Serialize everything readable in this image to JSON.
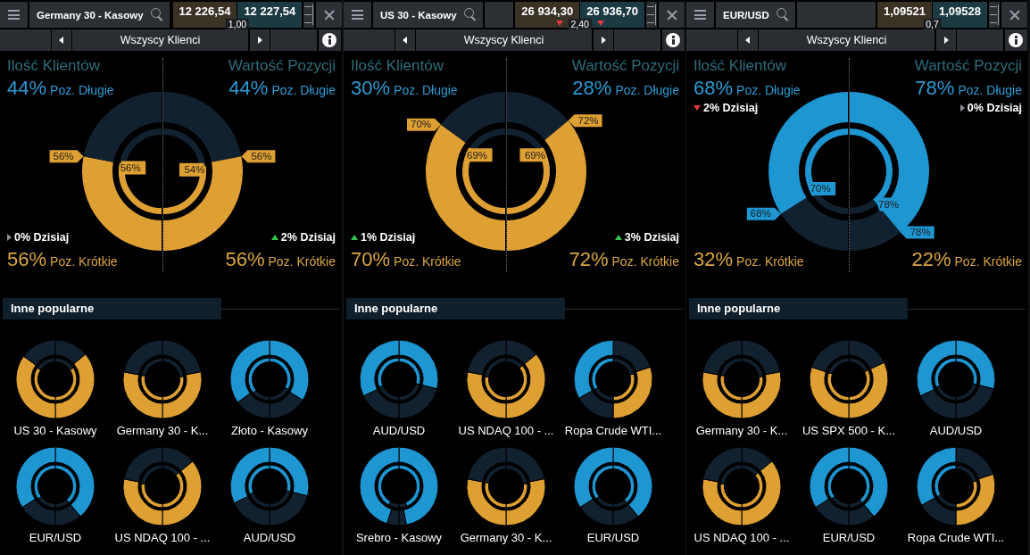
{
  "chart_data": [
    {
      "type": "other",
      "title": "Germany 30 - Kasowy",
      "annotations": [
        "12 226,54",
        "12 227,54",
        "1,00",
        "Wszyscy Klienci",
        "Inne popularne"
      ]
    },
    {
      "type": "donut",
      "title": "Ilość Klientów",
      "categories": [
        "Poz. Długie",
        "Poz. Krótkie"
      ],
      "colors": [
        "#122130",
        "#dfa033"
      ],
      "series": [
        {
          "values": [
            44,
            56
          ],
          "value_labels": [
            "44%",
            "56%"
          ]
        },
        {
          "values": [
            44,
            56
          ],
          "value_labels": [
            null,
            "56%"
          ]
        }
      ],
      "annotations": [
        "0% Dzisiaj"
      ]
    },
    {
      "type": "donut",
      "title": "Wartość Pozycji",
      "categories": [
        "Poz. Długie",
        "Poz. Krótkie"
      ],
      "colors": [
        "#122130",
        "#dfa033"
      ],
      "series": [
        {
          "values": [
            44,
            56
          ],
          "value_labels": [
            "44%",
            "56%"
          ]
        },
        {
          "values": [
            46,
            54
          ],
          "value_labels": [
            null,
            "54%"
          ]
        }
      ],
      "annotations": [
        "2% Dzisiaj"
      ]
    },
    {
      "type": "donut",
      "title": "US 30 - Kasowy",
      "categories": [
        null,
        null,
        null,
        null
      ],
      "colors": [
        "#122130",
        "#dfa033",
        "#dfa033",
        "#122130"
      ],
      "series": [
        {
          "values": [
            14,
            36,
            35,
            15
          ]
        },
        {
          "values": [
            16,
            34,
            34,
            16
          ]
        }
      ]
    },
    {
      "type": "donut",
      "title": "Germany 30 - K...",
      "categories": [
        null,
        null,
        null,
        null
      ],
      "colors": [
        "#122130",
        "#dfa033",
        "#dfa033",
        "#122130"
      ],
      "series": [
        {
          "values": [
            22,
            28,
            28,
            22
          ]
        },
        {
          "values": [
            23,
            27,
            28,
            22
          ]
        }
      ]
    },
    {
      "type": "donut",
      "title": "Złoto - Kasowy",
      "categories": [
        null,
        null,
        null,
        null
      ],
      "colors": [
        "#1e96d2",
        "#122130",
        "#122130",
        "#1e96d2"
      ],
      "series": [
        {
          "values": [
            34,
            16,
            15,
            35
          ]
        },
        {
          "values": [
            33,
            17,
            14,
            36
          ]
        }
      ]
    },
    {
      "type": "donut",
      "title": "EUR/USD",
      "categories": [
        null,
        null,
        null,
        null
      ],
      "colors": [
        "#1e96d2",
        "#122130",
        "#122130",
        "#1e96d2"
      ],
      "series": [
        {
          "values": [
            39,
            11,
            16,
            34
          ]
        },
        {
          "values": [
            39,
            11,
            15,
            35
          ]
        }
      ]
    },
    {
      "type": "donut",
      "title": "US NDAQ 100 - ...",
      "categories": [
        null,
        null,
        null,
        null
      ],
      "colors": [
        "#122130",
        "#dfa033",
        "#dfa033",
        "#122130"
      ],
      "series": [
        {
          "values": [
            14,
            36,
            28,
            22
          ]
        },
        {
          "values": [
            14,
            36,
            27,
            23
          ]
        }
      ]
    },
    {
      "type": "donut",
      "title": "AUD/USD",
      "categories": [
        null,
        null,
        null,
        null
      ],
      "colors": [
        "#1e96d2",
        "#122130",
        "#122130",
        "#1e96d2"
      ],
      "series": [
        {
          "values": [
            29,
            21,
            18,
            32
          ]
        },
        {
          "values": [
            29,
            21,
            19,
            31
          ]
        }
      ]
    },
    {
      "type": "other",
      "title": "US 30 - Kasowy",
      "annotations": [
        "26 934,30",
        "26 936,70",
        "2,40",
        "Wszyscy Klienci",
        "Inne popularne"
      ]
    },
    {
      "type": "donut",
      "title": "Ilość Klientów",
      "categories": [
        "Poz. Długie",
        "Poz. Krótkie"
      ],
      "colors": [
        "#122130",
        "#dfa033"
      ],
      "series": [
        {
          "values": [
            30,
            70
          ],
          "value_labels": [
            "30%",
            "70%"
          ]
        },
        {
          "values": [
            31,
            69
          ],
          "value_labels": [
            null,
            "69%"
          ]
        }
      ],
      "annotations": [
        "1% Dzisiaj"
      ]
    },
    {
      "type": "donut",
      "title": "Wartość Pozycji",
      "categories": [
        "Poz. Długie",
        "Poz. Krótkie"
      ],
      "colors": [
        "#122130",
        "#dfa033"
      ],
      "series": [
        {
          "values": [
            28,
            72
          ],
          "value_labels": [
            "28%",
            "72%"
          ]
        },
        {
          "values": [
            31,
            69
          ],
          "value_labels": [
            null,
            "69%"
          ]
        }
      ],
      "annotations": [
        "3% Dzisiaj"
      ]
    },
    {
      "type": "donut",
      "title": "AUD/USD",
      "categories": [
        null,
        null,
        null,
        null
      ],
      "colors": [
        "#1e96d2",
        "#122130",
        "#122130",
        "#1e96d2"
      ],
      "series": [
        {
          "values": [
            29,
            21,
            18,
            32
          ]
        },
        {
          "values": [
            29,
            21,
            19,
            31
          ]
        }
      ]
    },
    {
      "type": "donut",
      "title": "US NDAQ 100 - ...",
      "categories": [
        null,
        null,
        null,
        null
      ],
      "colors": [
        "#122130",
        "#dfa033",
        "#dfa033",
        "#122130"
      ],
      "series": [
        {
          "values": [
            14,
            36,
            28,
            22
          ]
        },
        {
          "values": [
            14,
            36,
            27,
            23
          ]
        }
      ]
    },
    {
      "type": "donut",
      "title": "Ropa Crude WTI...",
      "categories": [
        null,
        null,
        null,
        null
      ],
      "colors": [
        "#122130",
        "#dfa033",
        "#122130",
        "#1e96d2"
      ],
      "series": [
        {
          "values": [
            20,
            30,
            17,
            33
          ]
        },
        {
          "values": [
            21,
            29,
            17,
            33
          ]
        }
      ]
    },
    {
      "type": "donut",
      "title": "Srebro - Kasowy",
      "categories": [
        null,
        null,
        null,
        null
      ],
      "colors": [
        "#1e96d2",
        "#122130",
        "#122130",
        "#1e96d2"
      ],
      "series": [
        {
          "values": [
            47,
            3,
            5,
            45
          ]
        },
        {
          "values": [
            44,
            6,
            8,
            42
          ]
        }
      ]
    },
    {
      "type": "donut",
      "title": "Germany 30 - K...",
      "categories": [
        null,
        null,
        null,
        null
      ],
      "colors": [
        "#122130",
        "#dfa033",
        "#dfa033",
        "#122130"
      ],
      "series": [
        {
          "values": [
            22,
            28,
            28,
            22
          ]
        },
        {
          "values": [
            23,
            27,
            28,
            22
          ]
        }
      ]
    },
    {
      "type": "donut",
      "title": "EUR/USD",
      "categories": [
        null,
        null,
        null,
        null
      ],
      "colors": [
        "#1e96d2",
        "#122130",
        "#122130",
        "#1e96d2"
      ],
      "series": [
        {
          "values": [
            39,
            11,
            16,
            34
          ]
        },
        {
          "values": [
            39,
            11,
            15,
            35
          ]
        }
      ]
    },
    {
      "type": "other",
      "title": "EUR/USD",
      "annotations": [
        "1,09521",
        "1,09528",
        "0,7",
        "Wszyscy Klienci",
        "Inne popularne"
      ]
    },
    {
      "type": "donut",
      "title": "Ilość Klientów",
      "categories": [
        "Poz. Długie",
        "Poz. Krótkie"
      ],
      "colors": [
        "#1e96d2",
        "#122130"
      ],
      "series": [
        {
          "values": [
            68,
            32
          ],
          "value_labels": [
            "68%",
            "32%"
          ]
        },
        {
          "values": [
            70,
            30
          ],
          "value_labels": [
            "70%",
            null
          ]
        }
      ],
      "annotations": [
        "2% Dzisiaj"
      ]
    },
    {
      "type": "donut",
      "title": "Wartość Pozycji",
      "categories": [
        "Poz. Długie",
        "Poz. Krótkie"
      ],
      "colors": [
        "#1e96d2",
        "#122130"
      ],
      "series": [
        {
          "values": [
            78,
            22
          ],
          "value_labels": [
            "78%",
            "22%"
          ]
        },
        {
          "values": [
            78,
            22
          ],
          "value_labels": [
            "78%",
            null
          ]
        }
      ],
      "annotations": [
        "0% Dzisiaj"
      ]
    },
    {
      "type": "donut",
      "title": "Germany 30 - K...",
      "categories": [
        null,
        null,
        null,
        null
      ],
      "colors": [
        "#122130",
        "#dfa033",
        "#dfa033",
        "#122130"
      ],
      "series": [
        {
          "values": [
            22,
            28,
            28,
            22
          ]
        },
        {
          "values": [
            23,
            27,
            28,
            22
          ]
        }
      ]
    },
    {
      "type": "donut",
      "title": "US SPX 500 - K...",
      "categories": [
        null,
        null,
        null,
        null
      ],
      "colors": [
        "#122130",
        "#dfa033",
        "#dfa033",
        "#122130"
      ],
      "series": [
        {
          "values": [
            18,
            32,
            30,
            20
          ]
        },
        {
          "values": [
            18,
            32,
            30,
            20
          ]
        }
      ]
    },
    {
      "type": "donut",
      "title": "AUD/USD",
      "categories": [
        null,
        null,
        null,
        null
      ],
      "colors": [
        "#1e96d2",
        "#122130",
        "#122130",
        "#1e96d2"
      ],
      "series": [
        {
          "values": [
            29,
            21,
            18,
            32
          ]
        },
        {
          "values": [
            29,
            21,
            19,
            31
          ]
        }
      ]
    },
    {
      "type": "donut",
      "title": "US NDAQ 100 - ...",
      "categories": [
        null,
        null,
        null,
        null
      ],
      "colors": [
        "#122130",
        "#dfa033",
        "#dfa033",
        "#122130"
      ],
      "series": [
        {
          "values": [
            14,
            36,
            28,
            22
          ]
        },
        {
          "values": [
            14,
            36,
            27,
            23
          ]
        }
      ]
    },
    {
      "type": "donut",
      "title": "EUR/USD",
      "categories": [
        null,
        null,
        null,
        null
      ],
      "colors": [
        "#1e96d2",
        "#122130",
        "#122130",
        "#1e96d2"
      ],
      "series": [
        {
          "values": [
            39,
            11,
            16,
            34
          ]
        },
        {
          "values": [
            39,
            11,
            15,
            35
          ]
        }
      ]
    },
    {
      "type": "donut",
      "title": "Ropa Crude WTI...",
      "categories": [
        null,
        null,
        null,
        null
      ],
      "colors": [
        "#122130",
        "#dfa033",
        "#122130",
        "#1e96d2"
      ],
      "series": [
        {
          "values": [
            20,
            30,
            17,
            33
          ]
        },
        {
          "values": [
            21,
            29,
            17,
            33
          ]
        }
      ]
    }
  ]
}
